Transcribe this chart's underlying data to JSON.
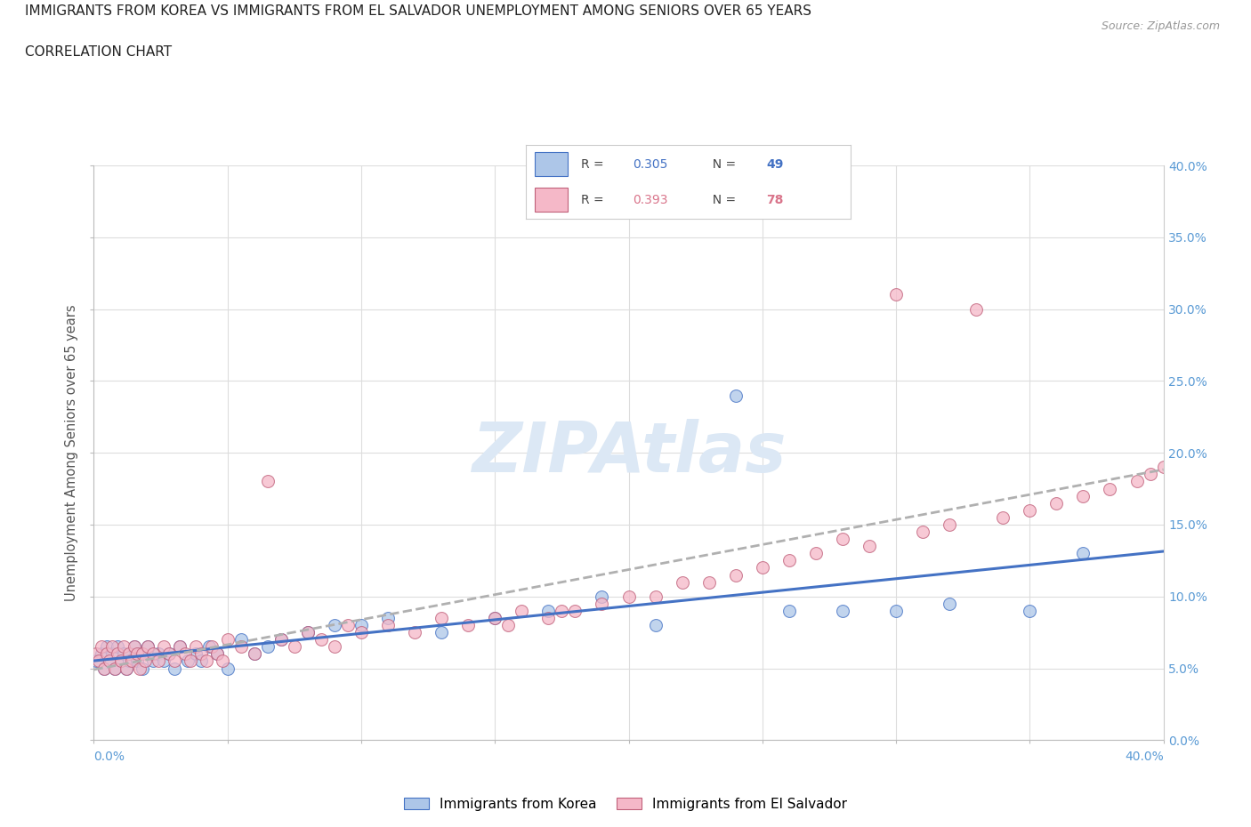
{
  "title_line1": "IMMIGRANTS FROM KOREA VS IMMIGRANTS FROM EL SALVADOR UNEMPLOYMENT AMONG SENIORS OVER 65 YEARS",
  "title_line2": "CORRELATION CHART",
  "source_text": "Source: ZipAtlas.com",
  "ylabel": "Unemployment Among Seniors over 65 years",
  "xlim": [
    0.0,
    0.4
  ],
  "ylim": [
    0.0,
    0.4
  ],
  "korea_color": "#adc6e8",
  "salvador_color": "#f5b8c8",
  "korea_line_color": "#4472c4",
  "salvador_line_color": "#d9748a",
  "korea_edge_color": "#4472c4",
  "salvador_edge_color": "#c0607a",
  "korea_R": 0.305,
  "korea_N": 49,
  "salvador_R": 0.393,
  "salvador_N": 78,
  "background_color": "#ffffff",
  "grid_color": "#dddddd",
  "watermark_color": "#dce8f5",
  "right_tick_color": "#5B9BD5",
  "title_color": "#222222",
  "source_color": "#999999",
  "ylabel_color": "#555555",
  "korea_x": [
    0.001,
    0.003,
    0.004,
    0.005,
    0.006,
    0.007,
    0.008,
    0.009,
    0.01,
    0.011,
    0.012,
    0.013,
    0.015,
    0.016,
    0.017,
    0.018,
    0.02,
    0.022,
    0.024,
    0.026,
    0.028,
    0.03,
    0.032,
    0.035,
    0.038,
    0.04,
    0.043,
    0.046,
    0.05,
    0.055,
    0.06,
    0.065,
    0.07,
    0.08,
    0.09,
    0.1,
    0.11,
    0.13,
    0.15,
    0.17,
    0.19,
    0.21,
    0.24,
    0.26,
    0.28,
    0.3,
    0.32,
    0.35,
    0.37
  ],
  "korea_y": [
    0.055,
    0.06,
    0.05,
    0.065,
    0.055,
    0.06,
    0.05,
    0.065,
    0.055,
    0.06,
    0.05,
    0.055,
    0.065,
    0.055,
    0.06,
    0.05,
    0.065,
    0.055,
    0.06,
    0.055,
    0.06,
    0.05,
    0.065,
    0.055,
    0.06,
    0.055,
    0.065,
    0.06,
    0.05,
    0.07,
    0.06,
    0.065,
    0.07,
    0.075,
    0.08,
    0.08,
    0.085,
    0.075,
    0.085,
    0.09,
    0.1,
    0.08,
    0.24,
    0.09,
    0.09,
    0.09,
    0.095,
    0.09,
    0.13
  ],
  "salvador_x": [
    0.001,
    0.002,
    0.003,
    0.004,
    0.005,
    0.006,
    0.007,
    0.008,
    0.009,
    0.01,
    0.011,
    0.012,
    0.013,
    0.014,
    0.015,
    0.016,
    0.017,
    0.018,
    0.019,
    0.02,
    0.022,
    0.024,
    0.026,
    0.028,
    0.03,
    0.032,
    0.034,
    0.036,
    0.038,
    0.04,
    0.042,
    0.044,
    0.046,
    0.048,
    0.05,
    0.055,
    0.06,
    0.065,
    0.07,
    0.075,
    0.08,
    0.085,
    0.09,
    0.095,
    0.1,
    0.11,
    0.12,
    0.13,
    0.14,
    0.15,
    0.155,
    0.16,
    0.17,
    0.175,
    0.18,
    0.19,
    0.2,
    0.21,
    0.22,
    0.23,
    0.24,
    0.25,
    0.26,
    0.27,
    0.28,
    0.29,
    0.3,
    0.31,
    0.32,
    0.33,
    0.34,
    0.35,
    0.36,
    0.37,
    0.38,
    0.39,
    0.395,
    0.4
  ],
  "salvador_y": [
    0.06,
    0.055,
    0.065,
    0.05,
    0.06,
    0.055,
    0.065,
    0.05,
    0.06,
    0.055,
    0.065,
    0.05,
    0.06,
    0.055,
    0.065,
    0.06,
    0.05,
    0.06,
    0.055,
    0.065,
    0.06,
    0.055,
    0.065,
    0.06,
    0.055,
    0.065,
    0.06,
    0.055,
    0.065,
    0.06,
    0.055,
    0.065,
    0.06,
    0.055,
    0.07,
    0.065,
    0.06,
    0.18,
    0.07,
    0.065,
    0.075,
    0.07,
    0.065,
    0.08,
    0.075,
    0.08,
    0.075,
    0.085,
    0.08,
    0.085,
    0.08,
    0.09,
    0.085,
    0.09,
    0.09,
    0.095,
    0.1,
    0.1,
    0.11,
    0.11,
    0.115,
    0.12,
    0.125,
    0.13,
    0.14,
    0.135,
    0.31,
    0.145,
    0.15,
    0.3,
    0.155,
    0.16,
    0.165,
    0.17,
    0.175,
    0.18,
    0.185,
    0.19
  ]
}
